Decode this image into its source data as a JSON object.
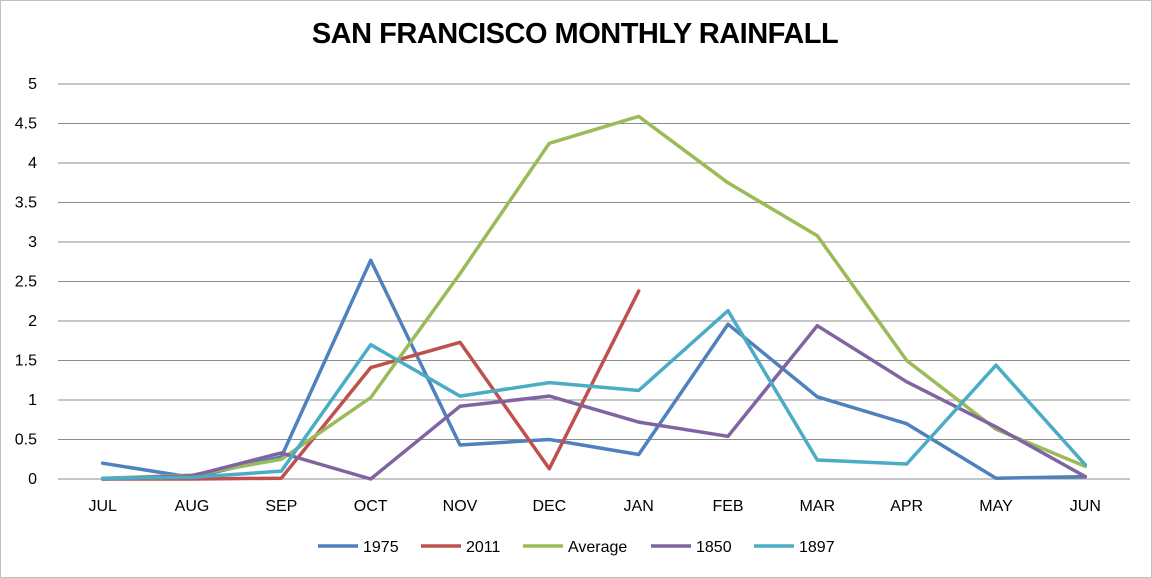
{
  "chart_data": {
    "type": "line",
    "title": "SAN FRANCISCO MONTHLY RAINFALL",
    "xlabel": "",
    "ylabel": "",
    "ylim": [
      0,
      5
    ],
    "yticks": [
      0,
      0.5,
      1,
      1.5,
      2,
      2.5,
      3,
      3.5,
      4,
      4.5,
      5
    ],
    "ytick_labels": [
      "0",
      "0.5",
      "1",
      "1.5",
      "2",
      "2.5",
      "3",
      "3.5",
      "4",
      "4.5",
      "5"
    ],
    "grid": true,
    "legend_position": "bottom",
    "categories": [
      "JUL",
      "AUG",
      "SEP",
      "OCT",
      "NOV",
      "DEC",
      "JAN",
      "FEB",
      "MAR",
      "APR",
      "MAY",
      "JUN"
    ],
    "series": [
      {
        "name": "1975",
        "color": "#4f81bd",
        "values": [
          0.2,
          0.02,
          0.28,
          2.77,
          0.43,
          0.5,
          0.31,
          1.96,
          1.04,
          0.7,
          0.01,
          0.03
        ]
      },
      {
        "name": "2011",
        "color": "#c0504d",
        "values": [
          0.0,
          0.0,
          0.01,
          1.41,
          1.73,
          0.13,
          2.38,
          null,
          null,
          null,
          null,
          null
        ]
      },
      {
        "name": "Average",
        "color": "#9bbb59",
        "values": [
          0.01,
          0.05,
          0.25,
          1.03,
          2.6,
          4.25,
          4.59,
          3.75,
          3.08,
          1.5,
          0.63,
          0.16
        ]
      },
      {
        "name": "1850",
        "color": "#8064a2",
        "values": [
          0.0,
          0.04,
          0.33,
          0.0,
          0.92,
          1.05,
          0.72,
          0.54,
          1.94,
          1.23,
          0.66,
          0.03
        ]
      },
      {
        "name": "1897",
        "color": "#4bacc6",
        "values": [
          0.01,
          0.02,
          0.1,
          1.7,
          1.05,
          1.22,
          1.12,
          2.13,
          0.24,
          0.19,
          1.44,
          0.18
        ]
      }
    ]
  }
}
